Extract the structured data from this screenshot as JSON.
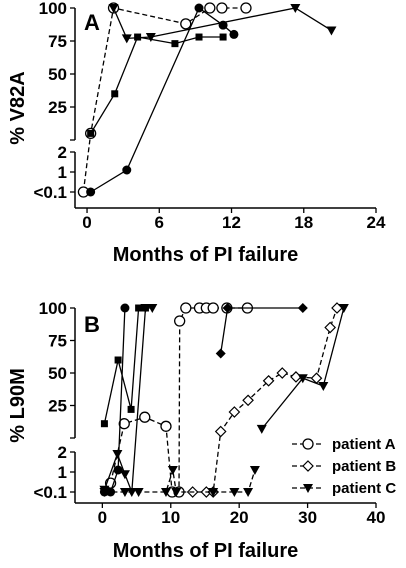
{
  "chart_data": [
    {
      "type": "line",
      "panel_label": "A",
      "ylabel": "% V82A",
      "xlabel": "Months of PI failure",
      "x_ticks": [
        0,
        6,
        12,
        18,
        24
      ],
      "xlim": [
        -1,
        24
      ],
      "y_scale": "broken: lower <0.1-2 log-like, upper 0-100 linear",
      "y_tick_labels_upper": [
        "100",
        "75",
        "50",
        "25"
      ],
      "y_tick_labels_lower": [
        "2",
        "1",
        "<0.1"
      ],
      "series": [
        {
          "marker": "open-circle",
          "line": "dashed",
          "points": [
            [
              -0.3,
              0.1
            ],
            [
              0.3,
              5
            ],
            [
              2.2,
              100
            ],
            [
              8.2,
              88
            ],
            [
              10.2,
              100
            ],
            [
              11.2,
              100
            ],
            [
              13.2,
              100
            ]
          ]
        },
        {
          "marker": "filled-circle",
          "line": "solid",
          "points": [
            [
              0.3,
              0.1
            ],
            [
              3.3,
              1.1
            ],
            [
              9.3,
              100
            ],
            [
              11.3,
              87
            ],
            [
              12.2,
              80
            ]
          ]
        },
        {
          "marker": "filled-square",
          "line": "solid",
          "points": [
            [
              0.3,
              5
            ],
            [
              2.3,
              35
            ],
            [
              4.2,
              78
            ],
            [
              7.3,
              73
            ],
            [
              9.3,
              78
            ],
            [
              11.3,
              78
            ]
          ]
        },
        {
          "marker": "filled-triangle-down",
          "line": "solid",
          "points": [
            [
              2.2,
              100
            ],
            [
              3.3,
              77
            ],
            [
              5.3,
              78
            ],
            [
              17.3,
              100
            ],
            [
              20.3,
              83
            ]
          ]
        }
      ]
    },
    {
      "type": "line",
      "panel_label": "B",
      "ylabel": "% L90M",
      "xlabel": "Months of PI failure",
      "x_ticks": [
        0,
        10,
        20,
        30,
        40
      ],
      "xlim": [
        -4,
        40
      ],
      "y_scale": "broken: lower <0.1-2 log-like, upper 0-100 linear",
      "y_tick_labels_upper": [
        "100",
        "75",
        "50",
        "25"
      ],
      "y_tick_labels_lower": [
        "2",
        "1",
        "<0.1"
      ],
      "legend": [
        "patient A",
        "patient B",
        "patient C"
      ],
      "legend_placement": "lower-right",
      "series": [
        {
          "marker": "open-circle",
          "line": "dashed",
          "points": [
            [
              1.2,
              0.5
            ],
            [
              3.2,
              11
            ],
            [
              6.2,
              16
            ],
            [
              9.3,
              9
            ],
            [
              10.2,
              0.1
            ],
            [
              11.2,
              0.1
            ],
            [
              11.3,
              90
            ],
            [
              12.2,
              100
            ],
            [
              14.2,
              100
            ],
            [
              15.2,
              100
            ],
            [
              16.2,
              100
            ],
            [
              18.2,
              100
            ],
            [
              21.2,
              100
            ]
          ]
        },
        {
          "marker": "filled-circle",
          "line": "solid",
          "points": [
            [
              0.3,
              0.1
            ],
            [
              1.2,
              0.1
            ],
            [
              2.3,
              1.1
            ],
            [
              3.3,
              100
            ]
          ]
        },
        {
          "marker": "filled-square",
          "line": "solid",
          "points": [
            [
              0.3,
              11
            ],
            [
              2.3,
              60
            ],
            [
              4.2,
              22
            ],
            [
              5.3,
              100
            ],
            [
              6.3,
              100
            ]
          ]
        },
        {
          "marker": "filled-triangle-down",
          "line": "solid",
          "points": [
            [
              0.3,
              0.2
            ],
            [
              2.2,
              1.9
            ],
            [
              3.3,
              0.9
            ],
            [
              4.3,
              0.1
            ],
            [
              6.3,
              100
            ],
            [
              7.3,
              100
            ]
          ]
        },
        {
          "marker": "open-diamond",
          "line": "dashed",
          "points": [
            [
              13.2,
              0.1
            ],
            [
              15.2,
              0.1
            ],
            [
              16.2,
              0.1
            ],
            [
              17.3,
              5
            ],
            [
              19.3,
              20
            ],
            [
              21.3,
              29
            ],
            [
              24.3,
              44
            ],
            [
              26.3,
              50
            ],
            [
              28.3,
              47
            ],
            [
              31.3,
              46
            ],
            [
              33.3,
              85
            ],
            [
              34.3,
              100
            ]
          ]
        },
        {
          "marker": "filled-diamond",
          "line": "solid",
          "points": [
            [
              17.3,
              65
            ],
            [
              18.3,
              100
            ],
            [
              29.3,
              100
            ]
          ]
        },
        {
          "marker": "filled-triangle-down",
          "line": "dashed",
          "points": [
            [
              0.3,
              0.1
            ],
            [
              3.3,
              0.1
            ],
            [
              5.3,
              0.1
            ],
            [
              9.3,
              0.1
            ],
            [
              10.3,
              1.1
            ],
            [
              10.8,
              0.1
            ],
            [
              16.2,
              0.1
            ],
            [
              19.3,
              0.1
            ],
            [
              21.3,
              0.1
            ],
            [
              22.3,
              1.1
            ]
          ]
        },
        {
          "marker": "filled-triangle-down",
          "line": "solid",
          "points": [
            [
              23.3,
              7
            ],
            [
              29.3,
              46
            ],
            [
              32.3,
              40
            ],
            [
              35.3,
              100
            ]
          ]
        }
      ]
    }
  ]
}
